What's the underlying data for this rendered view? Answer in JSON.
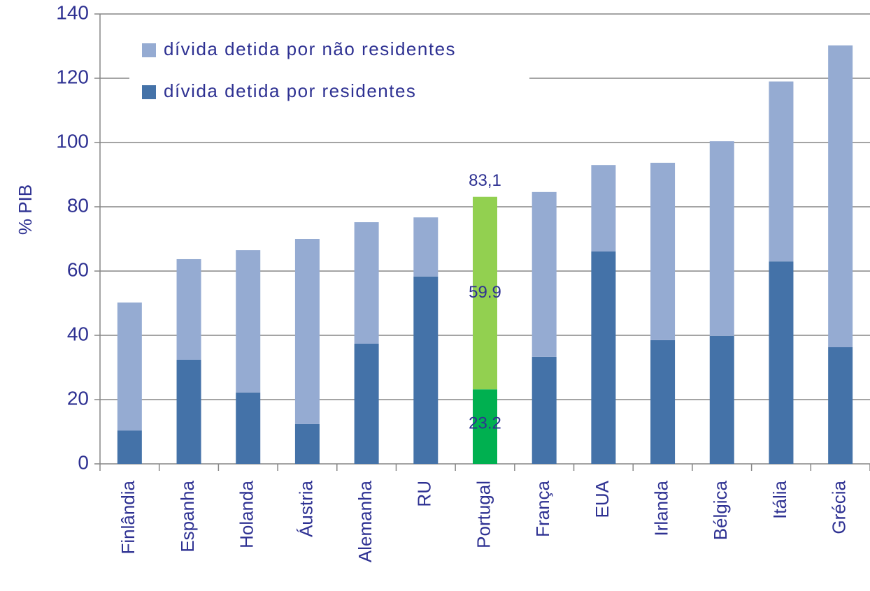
{
  "chart_data": {
    "type": "stacked_bar",
    "y_label": "% PIB",
    "categories": [
      "Finlândia",
      "Espanha",
      "Holanda",
      "Áustria",
      "Alemanha",
      "RU",
      "Portugal",
      "França",
      "EUA",
      "Irlanda",
      "Bélgica",
      "Itália",
      "Grécia"
    ],
    "series": [
      {
        "name": "dívida detida por residentes",
        "color": "#4472a8",
        "highlight_color": "#00b050",
        "values": [
          10.4,
          32.4,
          22.2,
          12.4,
          37.4,
          58.3,
          23.2,
          33.3,
          66.1,
          38.5,
          39.8,
          63,
          36.3
        ],
        "value_labels": [
          null,
          null,
          null,
          null,
          null,
          null,
          "23.2",
          null,
          null,
          null,
          null,
          null,
          null
        ]
      },
      {
        "name": "dívida detida por não residentes",
        "color": "#95abd2",
        "highlight_color": "#92d050",
        "values": [
          39.8,
          31.3,
          44.3,
          57.6,
          37.8,
          18.4,
          59.9,
          51.3,
          26.9,
          55.2,
          60.6,
          56,
          93.9
        ],
        "value_labels": [
          null,
          null,
          null,
          null,
          null,
          null,
          "59.9",
          null,
          null,
          null,
          null,
          null,
          null
        ]
      }
    ],
    "highlight": "Portugal",
    "annotations": [
      {
        "text": "83,1",
        "value": 83.1,
        "category": "Portugal"
      }
    ],
    "ylim": [
      0,
      140
    ],
    "yticks": [
      0,
      20,
      40,
      60,
      80,
      100,
      120,
      140
    ],
    "grid": true,
    "legend": "top-left"
  }
}
